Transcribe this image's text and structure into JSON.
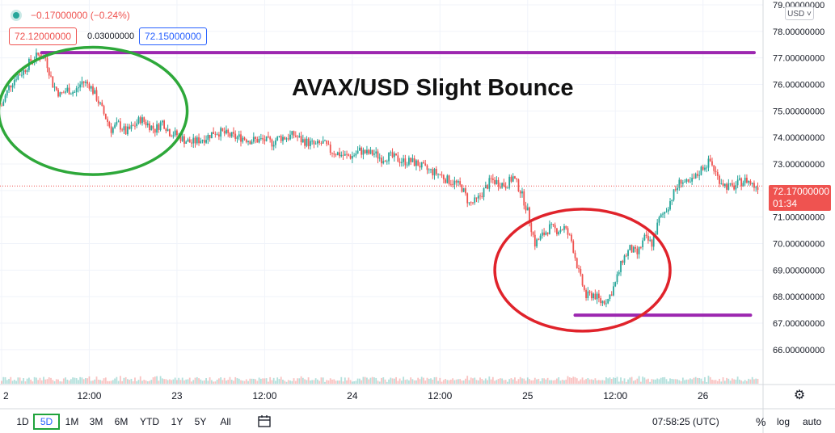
{
  "header": {
    "change": "−0.17000000 (−0.24%)",
    "bid": "72.12000000",
    "spread": "0.03000000",
    "ask": "72.15000000",
    "status_dot_color": "#26a69a"
  },
  "currency_select": "USD ˅",
  "last_price": {
    "value": "72.17000000",
    "countdown": "01:34",
    "color": "#ef5350"
  },
  "annotation_title": "AVAX/USD Slight Bounce",
  "bottom_bar": {
    "timeframes": [
      "1D",
      "5D",
      "1M",
      "3M",
      "6M",
      "YTD",
      "1Y",
      "5Y",
      "All"
    ],
    "active_timeframe": "5D",
    "clock": "07:58:25 (UTC)",
    "percent": "%",
    "log": "log",
    "auto": "auto"
  },
  "colors": {
    "up": "#26a69a",
    "down": "#ef5350",
    "resistance_line": "#9c27b0",
    "green_ellipse": "#2ea83a",
    "red_ellipse": "#e0232b"
  },
  "chart_data": {
    "type": "candlestick",
    "title": "AVAX/USD Slight Bounce",
    "y_ticks": [
      "79.00000000",
      "78.00000000",
      "77.00000000",
      "76.00000000",
      "75.00000000",
      "74.00000000",
      "73.00000000",
      "72.00000000",
      "71.00000000",
      "70.00000000",
      "69.00000000",
      "68.00000000",
      "67.00000000",
      "66.00000000"
    ],
    "ylim": [
      65.6,
      79.0
    ],
    "x_ticks": [
      "2",
      "12:00",
      "23",
      "12:00",
      "24",
      "12:00",
      "25",
      "12:00",
      "26"
    ],
    "x_tick_hours": [
      0,
      12,
      24,
      36,
      48,
      60,
      72,
      84,
      96
    ],
    "xlim_hours": [
      0,
      104
    ],
    "close_path": [
      [
        0,
        75.2
      ],
      [
        1,
        75.9
      ],
      [
        2,
        76.3
      ],
      [
        3,
        76.5
      ],
      [
        4,
        76.9
      ],
      [
        5,
        77.1
      ],
      [
        6,
        77.0
      ],
      [
        7,
        76.0
      ],
      [
        8,
        75.6
      ],
      [
        9,
        75.8
      ],
      [
        10,
        75.7
      ],
      [
        11,
        76.1
      ],
      [
        12,
        76.0
      ],
      [
        13,
        75.5
      ],
      [
        14,
        74.9
      ],
      [
        15,
        74.3
      ],
      [
        16,
        74.5
      ],
      [
        17,
        74.2
      ],
      [
        18,
        74.4
      ],
      [
        19,
        74.7
      ],
      [
        20,
        74.5
      ],
      [
        21,
        74.3
      ],
      [
        22,
        74.6
      ],
      [
        23,
        74.2
      ],
      [
        24,
        74.1
      ],
      [
        25,
        73.9
      ],
      [
        26,
        73.8
      ],
      [
        27,
        73.9
      ],
      [
        28,
        74.0
      ],
      [
        29,
        74.2
      ],
      [
        30,
        74.2
      ],
      [
        31,
        74.1
      ],
      [
        32,
        74.0
      ],
      [
        33,
        74.0
      ],
      [
        34,
        73.9
      ],
      [
        35,
        73.9
      ],
      [
        36,
        73.9
      ],
      [
        37,
        73.8
      ],
      [
        38,
        74.0
      ],
      [
        39,
        74.0
      ],
      [
        40,
        74.1
      ],
      [
        41,
        73.9
      ],
      [
        42,
        73.8
      ],
      [
        43,
        73.7
      ],
      [
        44,
        73.8
      ],
      [
        45,
        73.5
      ],
      [
        46,
        73.4
      ],
      [
        47,
        73.3
      ],
      [
        48,
        73.3
      ],
      [
        49,
        73.5
      ],
      [
        50,
        73.4
      ],
      [
        51,
        73.4
      ],
      [
        52,
        73.2
      ],
      [
        53,
        73.3
      ],
      [
        54,
        73.2
      ],
      [
        55,
        73.1
      ],
      [
        56,
        73.1
      ],
      [
        57,
        73.0
      ],
      [
        58,
        72.8
      ],
      [
        59,
        72.7
      ],
      [
        60,
        72.6
      ],
      [
        61,
        72.4
      ],
      [
        62,
        72.3
      ],
      [
        63,
        72.1
      ],
      [
        64,
        71.5
      ],
      [
        65,
        71.6
      ],
      [
        66,
        72.0
      ],
      [
        67,
        72.4
      ],
      [
        68,
        72.3
      ],
      [
        69,
        72.2
      ],
      [
        70,
        72.5
      ],
      [
        71,
        72.0
      ],
      [
        72,
        71.2
      ],
      [
        73,
        70.0
      ],
      [
        74,
        70.3
      ],
      [
        75,
        70.6
      ],
      [
        76,
        70.5
      ],
      [
        77,
        70.6
      ],
      [
        78,
        70.1
      ],
      [
        79,
        68.9
      ],
      [
        80,
        68.0
      ],
      [
        81,
        68.1
      ],
      [
        82,
        67.8
      ],
      [
        83,
        67.9
      ],
      [
        84,
        68.5
      ],
      [
        85,
        69.4
      ],
      [
        86,
        69.8
      ],
      [
        87,
        69.6
      ],
      [
        88,
        70.2
      ],
      [
        89,
        70.0
      ],
      [
        90,
        70.9
      ],
      [
        91,
        71.3
      ],
      [
        92,
        71.9
      ],
      [
        93,
        72.4
      ],
      [
        94,
        72.2
      ],
      [
        95,
        72.5
      ],
      [
        96,
        72.9
      ],
      [
        97,
        73.1
      ],
      [
        98,
        72.5
      ],
      [
        99,
        72.2
      ],
      [
        100,
        72.1
      ],
      [
        101,
        72.3
      ],
      [
        102,
        72.4
      ],
      [
        103,
        72.17
      ]
    ],
    "resistance_level": 77.2,
    "support_level": 67.3,
    "last_price": 72.17
  }
}
